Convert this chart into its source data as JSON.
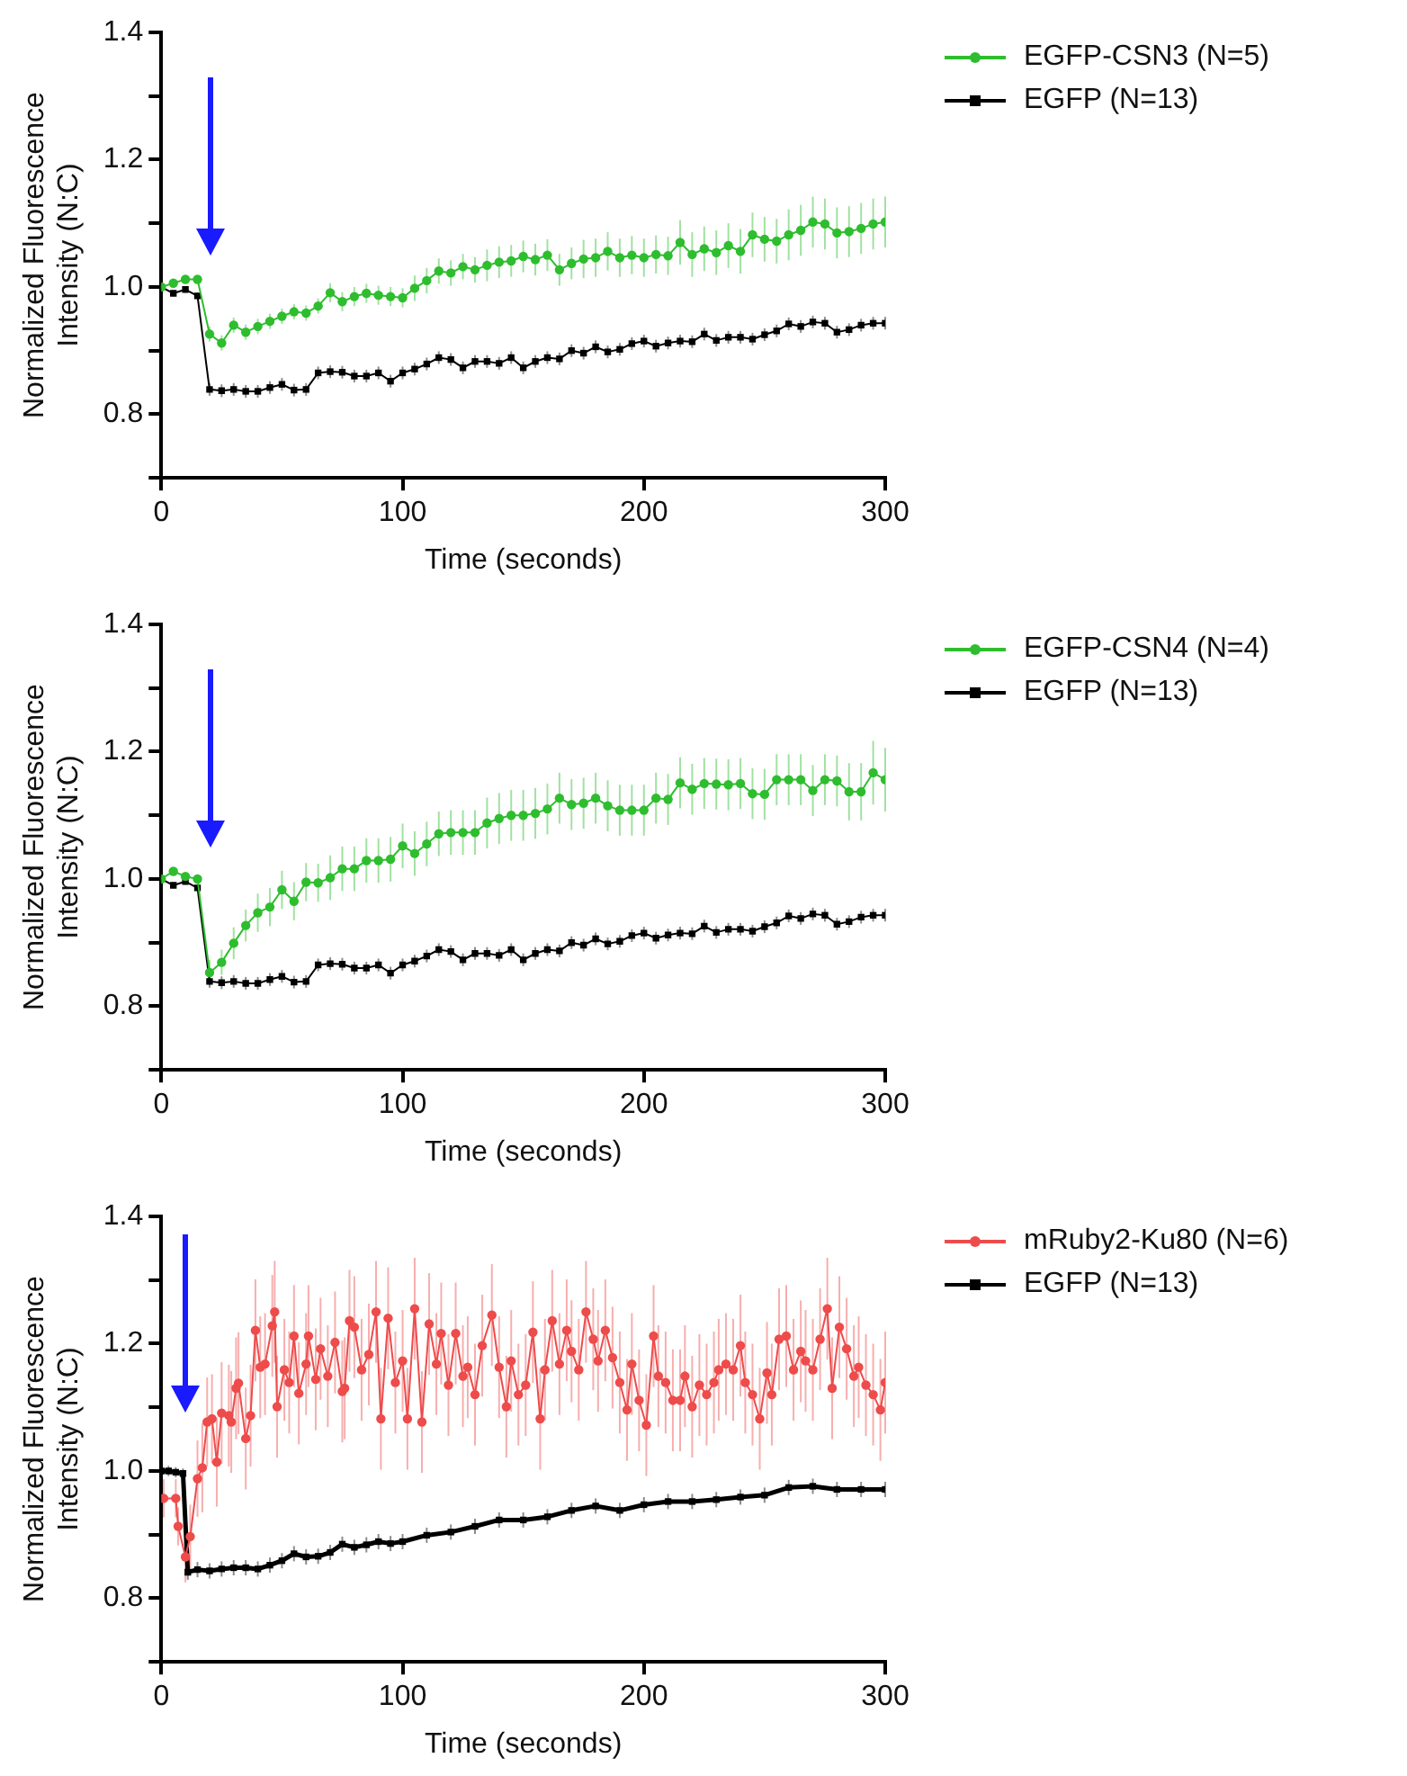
{
  "chart_data": [
    {
      "type": "line",
      "xlabel": "Time (seconds)",
      "ylabel": "Normalized Fluorescence\nIntensity (N:C)",
      "xlim": [
        0,
        300
      ],
      "xticks": [
        0,
        100,
        200,
        300
      ],
      "ylim": [
        0.7,
        1.4
      ],
      "yticks": [
        {
          "value": 0.7,
          "label": null
        },
        0.8,
        {
          "value": 0.9,
          "label": null
        },
        {
          "value": 1,
          "label": "1.0"
        },
        {
          "value": 1.1,
          "label": null
        },
        1.2,
        {
          "value": 1.3,
          "label": null
        },
        1.4
      ],
      "grid": false,
      "legend": "top right",
      "x": [
        0,
        5,
        10,
        15,
        20,
        25,
        30,
        35,
        40,
        45,
        50,
        55,
        60,
        65,
        70,
        75,
        80,
        85,
        90,
        95,
        100,
        105,
        110,
        115,
        120,
        125,
        130,
        135,
        140,
        145,
        150,
        155,
        160,
        165,
        170,
        175,
        180,
        185,
        190,
        195,
        200,
        205,
        210,
        215,
        220,
        225,
        230,
        235,
        240,
        245,
        250,
        255,
        260,
        265,
        270,
        275,
        280,
        285,
        290,
        295,
        300
      ],
      "series": [
        {
          "name": "EGFP-CSN3 (N=5)",
          "color": "#2ebd2e",
          "marker": "circle",
          "values": [
            1.0,
            1.006,
            1.012,
            1.012,
            0.926,
            0.912,
            0.94,
            0.929,
            0.938,
            0.946,
            0.954,
            0.961,
            0.959,
            0.97,
            0.991,
            0.977,
            0.985,
            0.99,
            0.987,
            0.985,
            0.983,
            0.998,
            1.01,
            1.025,
            1.022,
            1.032,
            1.027,
            1.034,
            1.039,
            1.041,
            1.048,
            1.043,
            1.05,
            1.027,
            1.037,
            1.044,
            1.046,
            1.056,
            1.046,
            1.05,
            1.046,
            1.051,
            1.049,
            1.07,
            1.051,
            1.06,
            1.054,
            1.065,
            1.056,
            1.082,
            1.075,
            1.072,
            1.082,
            1.089,
            1.102,
            1.099,
            1.085,
            1.087,
            1.092,
            1.099,
            1.102
          ],
          "errors": [
            0.005,
            0.005,
            0.005,
            0.005,
            0.012,
            0.012,
            0.012,
            0.012,
            0.012,
            0.012,
            0.012,
            0.012,
            0.012,
            0.012,
            0.015,
            0.015,
            0.015,
            0.015,
            0.015,
            0.015,
            0.015,
            0.02,
            0.02,
            0.02,
            0.02,
            0.02,
            0.02,
            0.025,
            0.025,
            0.025,
            0.025,
            0.025,
            0.025,
            0.025,
            0.025,
            0.03,
            0.03,
            0.03,
            0.03,
            0.03,
            0.03,
            0.03,
            0.03,
            0.035,
            0.035,
            0.035,
            0.035,
            0.035,
            0.035,
            0.035,
            0.035,
            0.035,
            0.04,
            0.04,
            0.04,
            0.04,
            0.04,
            0.04,
            0.04,
            0.04,
            0.04
          ]
        },
        {
          "name": "EGFP (N=13)",
          "color": "#000000",
          "marker": "square",
          "values": [
            1.0,
            0.99,
            0.996,
            0.986,
            0.839,
            0.837,
            0.839,
            0.836,
            0.836,
            0.842,
            0.847,
            0.838,
            0.839,
            0.865,
            0.867,
            0.866,
            0.86,
            0.86,
            0.865,
            0.852,
            0.865,
            0.871,
            0.879,
            0.889,
            0.886,
            0.873,
            0.883,
            0.883,
            0.88,
            0.889,
            0.873,
            0.883,
            0.889,
            0.887,
            0.9,
            0.896,
            0.906,
            0.898,
            0.902,
            0.911,
            0.915,
            0.907,
            0.912,
            0.915,
            0.914,
            0.926,
            0.916,
            0.921,
            0.921,
            0.918,
            0.925,
            0.931,
            0.942,
            0.938,
            0.945,
            0.943,
            0.929,
            0.933,
            0.94,
            0.943,
            0.943
          ],
          "errors": [
            0.005,
            0.005,
            0.005,
            0.005,
            0.01,
            0.01,
            0.01,
            0.01,
            0.01,
            0.01,
            0.01,
            0.01,
            0.01,
            0.01,
            0.01,
            0.01,
            0.01,
            0.01,
            0.01,
            0.01,
            0.01,
            0.01,
            0.01,
            0.01,
            0.01,
            0.01,
            0.01,
            0.01,
            0.01,
            0.01,
            0.01,
            0.01,
            0.01,
            0.01,
            0.01,
            0.01,
            0.01,
            0.01,
            0.01,
            0.01,
            0.01,
            0.01,
            0.01,
            0.01,
            0.01,
            0.01,
            0.01,
            0.01,
            0.01,
            0.01,
            0.01,
            0.01,
            0.01,
            0.01,
            0.01,
            0.01,
            0.01,
            0.01,
            0.01,
            0.01,
            0.01
          ]
        }
      ]
    },
    {
      "type": "line",
      "xlabel": "Time (seconds)",
      "ylabel": "Normalized Fluorescence\nIntensity (N:C)",
      "xlim": [
        0,
        300
      ],
      "xticks": [
        0,
        100,
        200,
        300
      ],
      "ylim": [
        0.7,
        1.4
      ],
      "yticks": [
        {
          "value": 0.7,
          "label": null
        },
        0.8,
        {
          "value": 0.9,
          "label": null
        },
        {
          "value": 1,
          "label": "1.0"
        },
        {
          "value": 1.1,
          "label": null
        },
        1.2,
        {
          "value": 1.3,
          "label": null
        },
        1.4
      ],
      "grid": false,
      "legend": "top right",
      "x": [
        0,
        5,
        10,
        15,
        20,
        25,
        30,
        35,
        40,
        45,
        50,
        55,
        60,
        65,
        70,
        75,
        80,
        85,
        90,
        95,
        100,
        105,
        110,
        115,
        120,
        125,
        130,
        135,
        140,
        145,
        150,
        155,
        160,
        165,
        170,
        175,
        180,
        185,
        190,
        195,
        200,
        205,
        210,
        215,
        220,
        225,
        230,
        235,
        240,
        245,
        250,
        255,
        260,
        265,
        270,
        275,
        280,
        285,
        290,
        295,
        300
      ],
      "series": [
        {
          "name": "EGFP-CSN4 (N=4)",
          "color": "#2ebd2e",
          "marker": "circle",
          "values": [
            1.0,
            1.012,
            1.004,
            1.0,
            0.853,
            0.869,
            0.899,
            0.927,
            0.947,
            0.956,
            0.983,
            0.965,
            0.995,
            0.994,
            1.002,
            1.016,
            1.016,
            1.029,
            1.029,
            1.031,
            1.052,
            1.04,
            1.055,
            1.071,
            1.073,
            1.073,
            1.073,
            1.088,
            1.095,
            1.1,
            1.1,
            1.103,
            1.11,
            1.127,
            1.117,
            1.119,
            1.127,
            1.115,
            1.108,
            1.108,
            1.108,
            1.127,
            1.125,
            1.151,
            1.141,
            1.15,
            1.149,
            1.148,
            1.15,
            1.134,
            1.133,
            1.156,
            1.156,
            1.156,
            1.139,
            1.156,
            1.154,
            1.137,
            1.137,
            1.167,
            1.156
          ],
          "errors": [
            0.005,
            0.005,
            0.005,
            0.005,
            0.02,
            0.02,
            0.025,
            0.025,
            0.03,
            0.03,
            0.03,
            0.03,
            0.03,
            0.03,
            0.035,
            0.035,
            0.035,
            0.035,
            0.035,
            0.035,
            0.035,
            0.035,
            0.035,
            0.035,
            0.035,
            0.035,
            0.035,
            0.04,
            0.04,
            0.04,
            0.04,
            0.04,
            0.04,
            0.04,
            0.04,
            0.04,
            0.04,
            0.04,
            0.04,
            0.04,
            0.04,
            0.04,
            0.04,
            0.04,
            0.04,
            0.04,
            0.04,
            0.04,
            0.04,
            0.04,
            0.04,
            0.04,
            0.04,
            0.04,
            0.04,
            0.04,
            0.04,
            0.045,
            0.045,
            0.05,
            0.05
          ]
        },
        {
          "name": "EGFP (N=13)",
          "color": "#000000",
          "marker": "square",
          "values": [
            1.0,
            0.99,
            0.996,
            0.986,
            0.839,
            0.837,
            0.839,
            0.836,
            0.836,
            0.842,
            0.847,
            0.838,
            0.839,
            0.865,
            0.867,
            0.866,
            0.86,
            0.86,
            0.865,
            0.852,
            0.865,
            0.871,
            0.879,
            0.889,
            0.886,
            0.873,
            0.883,
            0.883,
            0.88,
            0.889,
            0.873,
            0.883,
            0.889,
            0.887,
            0.9,
            0.896,
            0.906,
            0.898,
            0.902,
            0.911,
            0.915,
            0.907,
            0.912,
            0.915,
            0.914,
            0.926,
            0.916,
            0.921,
            0.921,
            0.918,
            0.925,
            0.931,
            0.942,
            0.938,
            0.945,
            0.943,
            0.929,
            0.933,
            0.94,
            0.943,
            0.943
          ],
          "errors": [
            0.005,
            0.005,
            0.005,
            0.005,
            0.01,
            0.01,
            0.01,
            0.01,
            0.01,
            0.01,
            0.01,
            0.01,
            0.01,
            0.01,
            0.01,
            0.01,
            0.01,
            0.01,
            0.01,
            0.01,
            0.01,
            0.01,
            0.01,
            0.01,
            0.01,
            0.01,
            0.01,
            0.01,
            0.01,
            0.01,
            0.01,
            0.01,
            0.01,
            0.01,
            0.01,
            0.01,
            0.01,
            0.01,
            0.01,
            0.01,
            0.01,
            0.01,
            0.01,
            0.01,
            0.01,
            0.01,
            0.01,
            0.01,
            0.01,
            0.01,
            0.01,
            0.01,
            0.01,
            0.01,
            0.01,
            0.01,
            0.01,
            0.01,
            0.01,
            0.01,
            0.01
          ]
        }
      ]
    },
    {
      "type": "line",
      "xlabel": "Time (seconds)",
      "ylabel": "Normalized Fluorescence\nIntensity (N:C)",
      "xlim": [
        0,
        300
      ],
      "xticks": [
        0,
        100,
        200,
        300
      ],
      "ylim": [
        0.7,
        1.4
      ],
      "yticks": [
        {
          "value": 0.7,
          "label": null
        },
        0.8,
        {
          "value": 0.9,
          "label": null
        },
        {
          "value": 1,
          "label": "1.0"
        },
        {
          "value": 1.1,
          "label": null
        },
        1.2,
        {
          "value": 1.3,
          "label": null
        },
        1.4
      ],
      "grid": false,
      "legend": "top right",
      "series": [
        {
          "name": "mRuby2-Ku80 (N=6)",
          "color": "#ee4b4b",
          "marker": "circle",
          "x": [
            1,
            6,
            7,
            10,
            12,
            15,
            17,
            19,
            21,
            23,
            25,
            28,
            29,
            31,
            32,
            35,
            37,
            39,
            41,
            43,
            46,
            47,
            48,
            51,
            53,
            55,
            57,
            60,
            61,
            64,
            66,
            69,
            72,
            75,
            76,
            78,
            80,
            83,
            86,
            89,
            91,
            94,
            97,
            100,
            102,
            105,
            108,
            111,
            114,
            116,
            119,
            122,
            125,
            127,
            130,
            133,
            137,
            140,
            143,
            145,
            148,
            151,
            154,
            157,
            159,
            162,
            165,
            168,
            170,
            173,
            176,
            179,
            181,
            184,
            187,
            190,
            193,
            195,
            198,
            201,
            204,
            206,
            209,
            212,
            215,
            217,
            220,
            223,
            226,
            229,
            231,
            234,
            237,
            240,
            242,
            245,
            248,
            251,
            253,
            256,
            259,
            262,
            265,
            267,
            270,
            273,
            276,
            278,
            281,
            284,
            287,
            289,
            292,
            295,
            298,
            300
          ],
          "values": [
            0.957,
            0.957,
            0.913,
            0.865,
            0.897,
            0.988,
            1.005,
            1.077,
            1.082,
            1.014,
            1.091,
            1.087,
            1.077,
            1.13,
            1.138,
            1.051,
            1.087,
            1.221,
            1.163,
            1.168,
            1.228,
            1.25,
            1.101,
            1.159,
            1.139,
            1.212,
            1.122,
            1.168,
            1.212,
            1.144,
            1.192,
            1.149,
            1.202,
            1.125,
            1.13,
            1.236,
            1.226,
            1.159,
            1.183,
            1.25,
            1.082,
            1.24,
            1.139,
            1.173,
            1.082,
            1.255,
            1.077,
            1.231,
            1.168,
            1.216,
            1.135,
            1.216,
            1.149,
            1.163,
            1.12,
            1.197,
            1.245,
            1.163,
            1.101,
            1.173,
            1.12,
            1.135,
            1.218,
            1.082,
            1.159,
            1.236,
            1.168,
            1.221,
            1.188,
            1.159,
            1.25,
            1.207,
            1.173,
            1.221,
            1.178,
            1.139,
            1.096,
            1.168,
            1.111,
            1.072,
            1.212,
            1.149,
            1.139,
            1.111,
            1.111,
            1.149,
            1.101,
            1.135,
            1.12,
            1.139,
            1.159,
            1.168,
            1.159,
            1.197,
            1.139,
            1.12,
            1.082,
            1.154,
            1.12,
            1.207,
            1.212,
            1.159,
            1.188,
            1.173,
            1.159,
            1.207,
            1.255,
            1.13,
            1.226,
            1.192,
            1.149,
            1.163,
            1.135,
            1.12,
            1.096,
            1.139
          ],
          "errors": [
            0.03,
            0.03,
            0.03,
            0.04,
            0.05,
            0.06,
            0.07,
            0.07,
            0.07,
            0.07,
            0.08,
            0.08,
            0.08,
            0.08,
            0.08,
            0.08,
            0.08,
            0.08,
            0.08,
            0.08,
            0.08,
            0.08,
            0.08,
            0.08,
            0.08,
            0.08,
            0.08,
            0.08,
            0.08,
            0.08,
            0.08,
            0.08,
            0.08,
            0.08,
            0.08,
            0.08,
            0.08,
            0.08,
            0.08,
            0.08,
            0.08,
            0.08,
            0.08,
            0.08,
            0.08,
            0.08,
            0.08,
            0.08,
            0.08,
            0.08,
            0.08,
            0.08,
            0.08,
            0.08,
            0.08,
            0.08,
            0.08,
            0.08,
            0.08,
            0.08,
            0.08,
            0.08,
            0.08,
            0.08,
            0.08,
            0.08,
            0.08,
            0.08,
            0.08,
            0.08,
            0.08,
            0.08,
            0.08,
            0.08,
            0.08,
            0.08,
            0.08,
            0.08,
            0.08,
            0.08,
            0.08,
            0.08,
            0.08,
            0.08,
            0.08,
            0.08,
            0.08,
            0.08,
            0.08,
            0.08,
            0.08,
            0.08,
            0.08,
            0.08,
            0.08,
            0.08,
            0.08,
            0.08,
            0.08,
            0.08,
            0.08,
            0.08,
            0.08,
            0.08,
            0.08,
            0.08,
            0.08,
            0.08,
            0.08,
            0.08,
            0.08,
            0.08,
            0.08,
            0.08,
            0.08,
            0.08
          ]
        },
        {
          "name": "EGFP (N=13)",
          "color": "#000000",
          "marker": "square",
          "x": [
            0,
            3,
            6,
            9,
            11,
            15,
            20,
            25,
            30,
            35,
            40,
            45,
            50,
            55,
            60,
            65,
            70,
            75,
            80,
            85,
            90,
            95,
            100,
            110,
            120,
            130,
            140,
            150,
            160,
            170,
            180,
            190,
            200,
            210,
            220,
            230,
            240,
            250,
            260,
            270,
            280,
            290,
            300
          ],
          "values": [
            1.0,
            1.0,
            0.998,
            0.996,
            0.841,
            0.845,
            0.843,
            0.846,
            0.848,
            0.848,
            0.846,
            0.852,
            0.859,
            0.87,
            0.865,
            0.866,
            0.872,
            0.885,
            0.88,
            0.884,
            0.889,
            0.886,
            0.889,
            0.899,
            0.904,
            0.913,
            0.923,
            0.923,
            0.928,
            0.938,
            0.945,
            0.938,
            0.947,
            0.952,
            0.952,
            0.955,
            0.959,
            0.962,
            0.974,
            0.976,
            0.971,
            0.971,
            0.971
          ],
          "errors": [
            0.008,
            0.008,
            0.008,
            0.008,
            0.012,
            0.012,
            0.012,
            0.012,
            0.012,
            0.012,
            0.012,
            0.012,
            0.012,
            0.012,
            0.012,
            0.012,
            0.012,
            0.012,
            0.012,
            0.012,
            0.012,
            0.012,
            0.012,
            0.012,
            0.012,
            0.012,
            0.012,
            0.012,
            0.012,
            0.012,
            0.012,
            0.012,
            0.012,
            0.012,
            0.012,
            0.012,
            0.012,
            0.012,
            0.012,
            0.012,
            0.012,
            0.012,
            0.012
          ]
        }
      ]
    }
  ]
}
